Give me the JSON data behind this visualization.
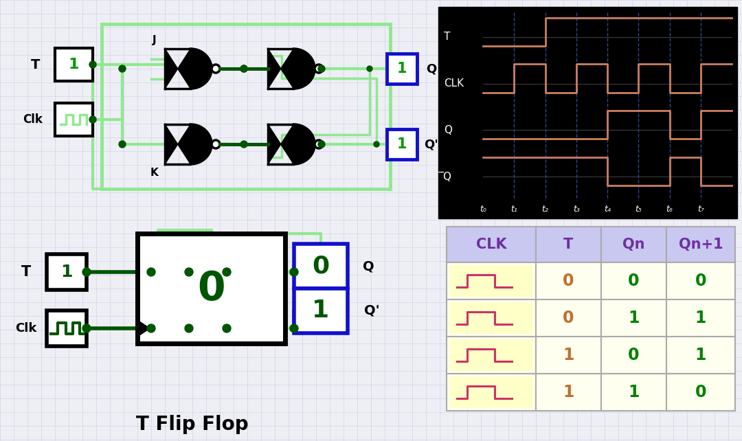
{
  "bg_color": "#eeeef5",
  "grid_color": "#d0d5e5",
  "title": "T Flip Flop",
  "timing": {
    "bg": "#000000",
    "signal_color": "#cd8060",
    "labels": [
      "T",
      "CLK",
      "Q",
      "̅Q"
    ],
    "t_labels": [
      "t₀",
      "t₁",
      "t₂",
      "t₃",
      "t₄",
      "t₅",
      "t₆",
      "t₇"
    ]
  },
  "truth_table": {
    "header_bg": "#c8c8f0",
    "row_bg_light": "#fffff0",
    "row_bg_white": "#ffffff",
    "header_color": "#7030a0",
    "T_color": "#c07030",
    "QnQn1_color": "#008000",
    "border_color": "#999999",
    "headers": [
      "CLK",
      "T",
      "Qn",
      "Qn+1"
    ],
    "rows": [
      [
        "clk",
        "0",
        "0",
        "0"
      ],
      [
        "clk",
        "0",
        "1",
        "1"
      ],
      [
        "clk",
        "1",
        "0",
        "1"
      ],
      [
        "clk",
        "1",
        "1",
        "0"
      ]
    ]
  },
  "lgreen": "#90e890",
  "dgreen": "#005500",
  "mgreen": "#007700",
  "black": "#000000",
  "blue_box": "#1010cc",
  "green_label": "#009900",
  "clk_pink": "#cc3366"
}
